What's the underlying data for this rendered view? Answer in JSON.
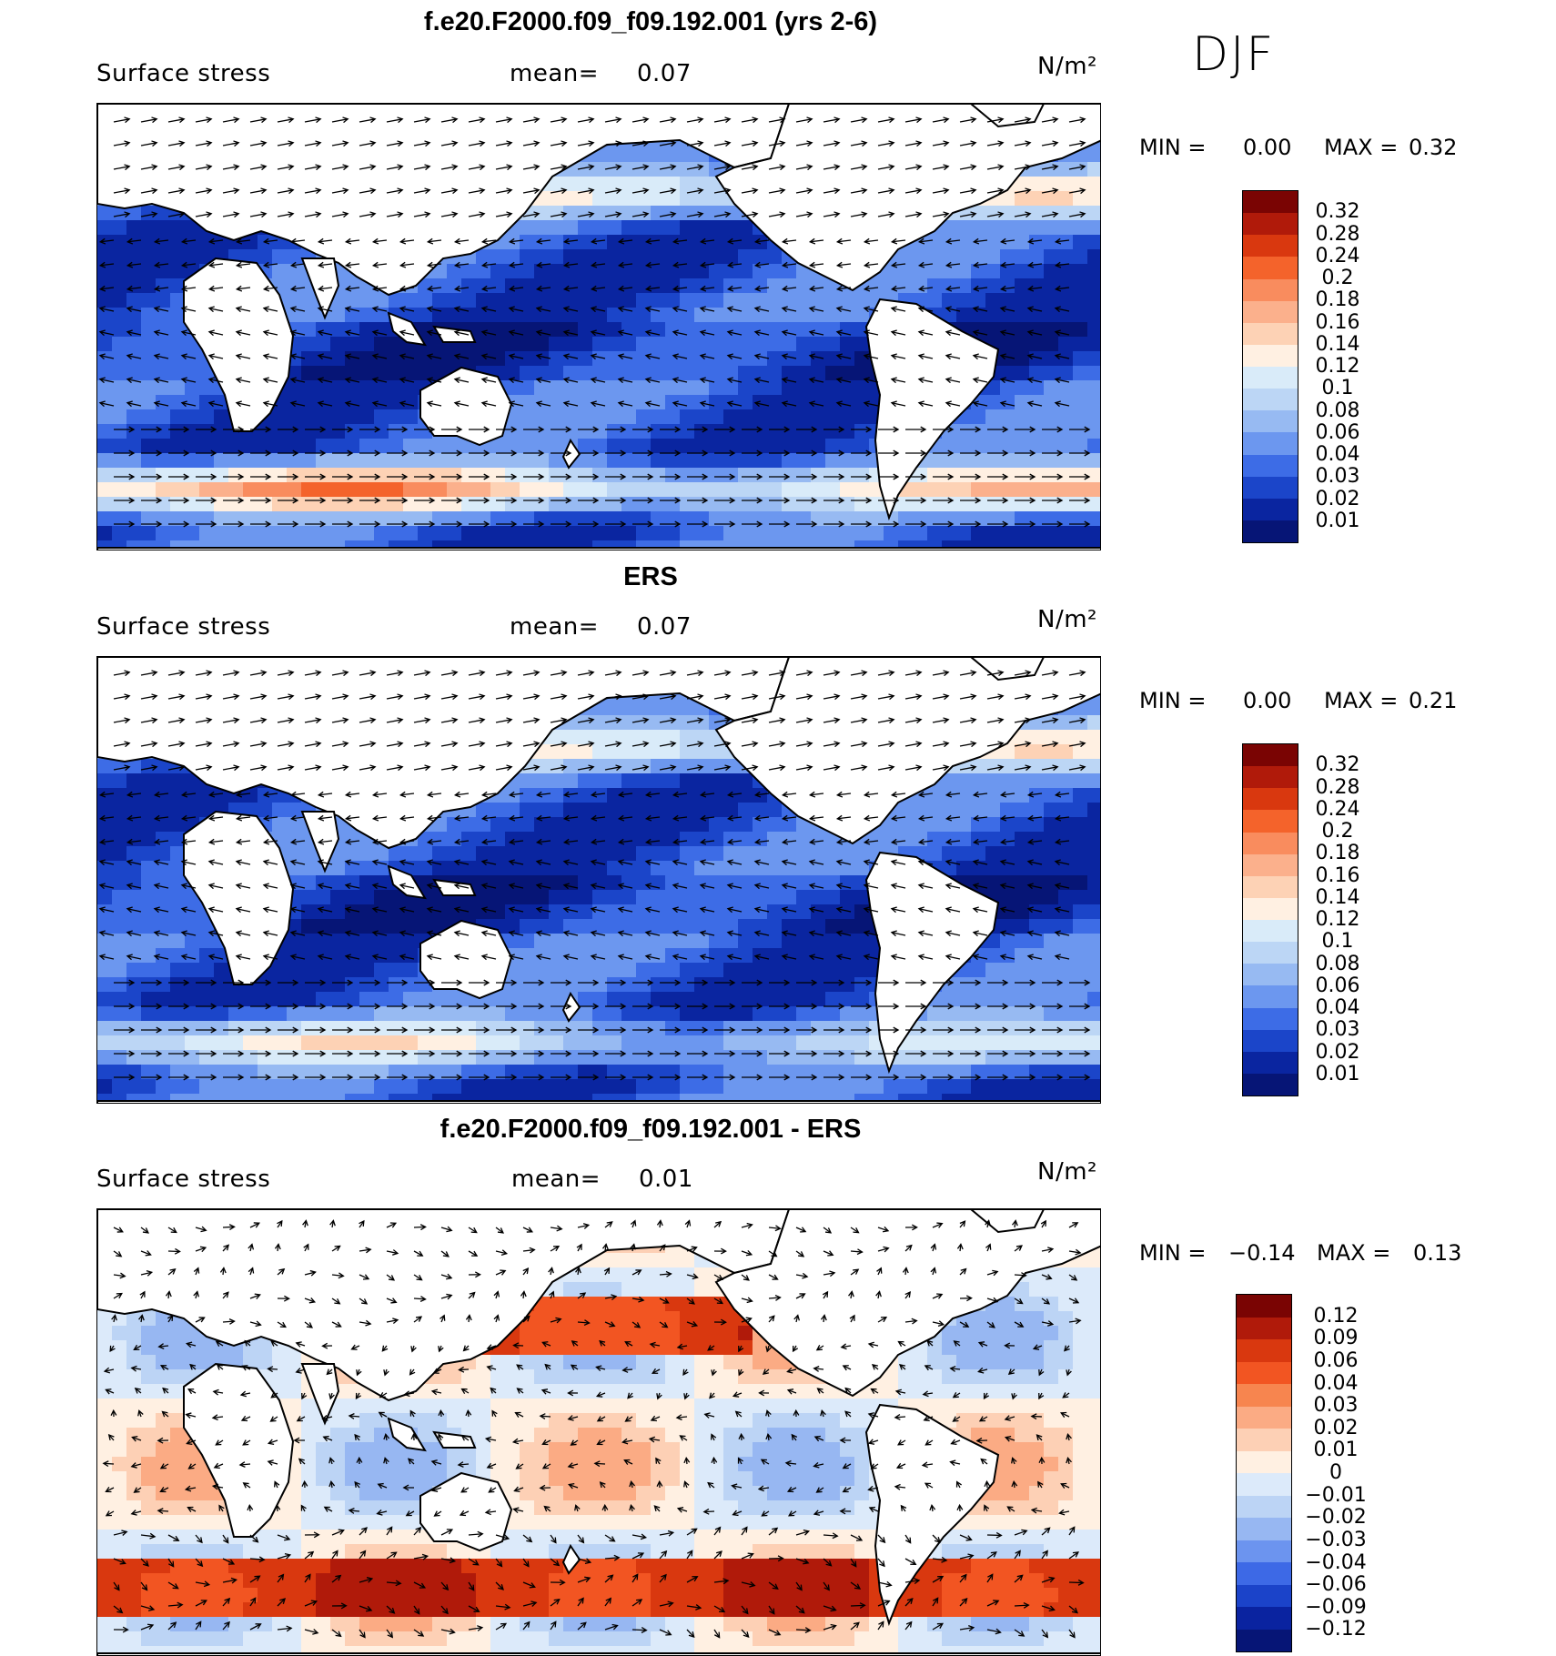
{
  "season": "DJF",
  "units": "N/m²",
  "chart_data": [
    {
      "type": "heatmap",
      "title": "f.e20.F2000.f09_f09.192.001 (yrs 2-6)",
      "variable": "Surface stress",
      "mean_label": "mean=",
      "mean": "0.07",
      "units": "N/m²",
      "min_label": "MIN =",
      "max_label": "MAX =",
      "min": "0.00",
      "max": "0.32",
      "colorbar_labels": [
        "0.32",
        "0.28",
        "0.24",
        "0.2",
        "0.18",
        "0.16",
        "0.14",
        "0.12",
        "0.1",
        "0.08",
        "0.06",
        "0.04",
        "0.03",
        "0.02",
        "0.01"
      ],
      "colorbar_colors": [
        "#7a0403",
        "#b01a0a",
        "#d9380f",
        "#f4632b",
        "#f98c5e",
        "#fbb08c",
        "#fdd2b5",
        "#fff0e2",
        "#d9ebf9",
        "#bcd6f5",
        "#97baf2",
        "#6c97ef",
        "#3d6ce6",
        "#1b45c9",
        "#0a25a0",
        "#061576"
      ],
      "vector_field": "wind stress arrows"
    },
    {
      "type": "heatmap",
      "title": "ERS",
      "variable": "Surface stress",
      "mean_label": "mean=",
      "mean": "0.07",
      "units": "N/m²",
      "min_label": "MIN =",
      "max_label": "MAX =",
      "min": "0.00",
      "max": "0.21",
      "colorbar_labels": [
        "0.32",
        "0.28",
        "0.24",
        "0.2",
        "0.18",
        "0.16",
        "0.14",
        "0.12",
        "0.1",
        "0.08",
        "0.06",
        "0.04",
        "0.03",
        "0.02",
        "0.01"
      ],
      "colorbar_colors": [
        "#7a0403",
        "#b01a0a",
        "#d9380f",
        "#f4632b",
        "#f98c5e",
        "#fbb08c",
        "#fdd2b5",
        "#fff0e2",
        "#d9ebf9",
        "#bcd6f5",
        "#97baf2",
        "#6c97ef",
        "#3d6ce6",
        "#1b45c9",
        "#0a25a0",
        "#061576"
      ],
      "vector_field": "wind stress arrows"
    },
    {
      "type": "heatmap",
      "title": "f.e20.F2000.f09_f09.192.001 - ERS",
      "variable": "Surface stress",
      "mean_label": "mean=",
      "mean": "0.01",
      "units": "N/m²",
      "min_label": "MIN =",
      "max_label": "MAX =",
      "min": "−0.14",
      "max": "0.13",
      "colorbar_labels": [
        "0.12",
        "0.09",
        "0.06",
        "0.04",
        "0.03",
        "0.02",
        "0.01",
        "0",
        "−0.01",
        "−0.02",
        "−0.03",
        "−0.04",
        "−0.06",
        "−0.09",
        "−0.12"
      ],
      "colorbar_colors": [
        "#7a0403",
        "#b01a0a",
        "#d9380f",
        "#f25522",
        "#f7854f",
        "#fbab84",
        "#fdd0b5",
        "#fff0e2",
        "#dceafa",
        "#bcd4f5",
        "#97b7f2",
        "#6c94ef",
        "#3d69e6",
        "#1b43c9",
        "#0a23a0",
        "#061576"
      ],
      "vector_field": "wind stress difference arrows"
    }
  ]
}
